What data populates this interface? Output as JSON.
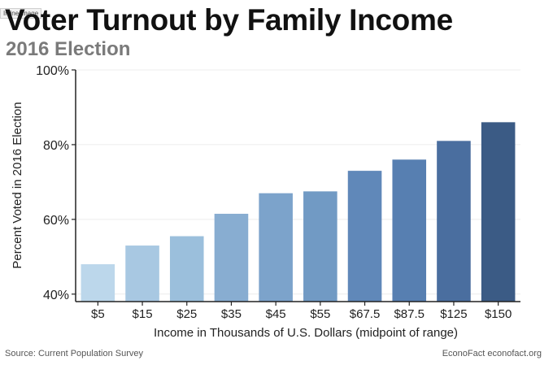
{
  "badge": "Inline image",
  "chart_data": {
    "type": "bar",
    "title": "Voter Turnout by Family Income",
    "subtitle": "2016 Election",
    "xlabel": "Income in Thousands of U.S. Dollars (midpoint of range)",
    "ylabel": "Percent Voted in 2016 Election",
    "categories": [
      "$5",
      "$15",
      "$25",
      "$35",
      "$45",
      "$55",
      "$67.5",
      "$87.5",
      "$125",
      "$150"
    ],
    "values": [
      48,
      53,
      55.5,
      61.5,
      67,
      67.5,
      73,
      76,
      81,
      86
    ],
    "ylim": [
      38,
      100
    ],
    "yticks": [
      40,
      60,
      80,
      100
    ],
    "ytick_labels": [
      "40%",
      "60%",
      "80%",
      "100%"
    ],
    "grid": true,
    "colors": [
      "#bcd7eb",
      "#a8c8e2",
      "#9bbfdc",
      "#88add1",
      "#7ca3cb",
      "#719ac4",
      "#6088b9",
      "#577fb1",
      "#4a6e9f",
      "#3b5b85"
    ]
  },
  "footer": {
    "source": "Source: Current Population Survey",
    "credit": "EconoFact  econofact.org"
  }
}
